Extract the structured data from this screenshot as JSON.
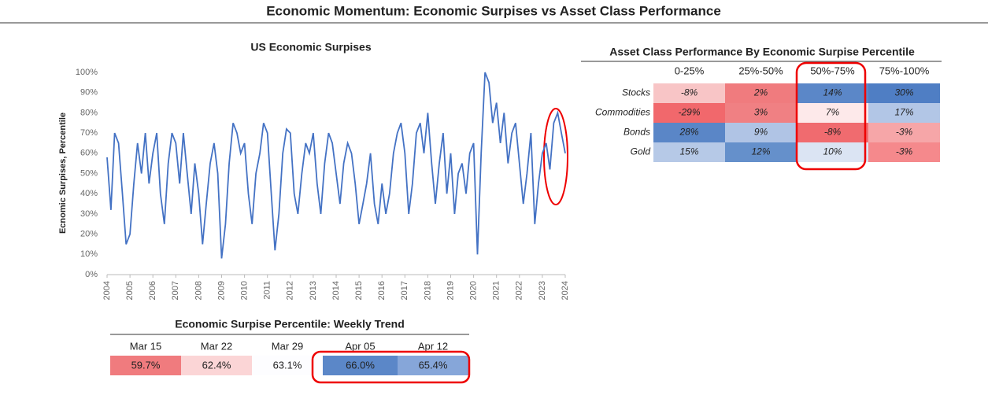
{
  "title": "Economic Momentum: Economic Surpises vs Asset Class Performance",
  "chart_data": {
    "type": "line",
    "title": "US Economic Surpises",
    "y_label": "Ecnomic Surpises, Percentile",
    "color": "#4472c4",
    "x": [
      2004,
      2004.17,
      2004.33,
      2004.5,
      2004.67,
      2004.83,
      2005,
      2005.17,
      2005.33,
      2005.5,
      2005.67,
      2005.83,
      2006,
      2006.17,
      2006.33,
      2006.5,
      2006.67,
      2006.83,
      2007,
      2007.17,
      2007.33,
      2007.5,
      2007.67,
      2007.83,
      2008,
      2008.17,
      2008.33,
      2008.5,
      2008.67,
      2008.83,
      2009,
      2009.17,
      2009.33,
      2009.5,
      2009.67,
      2009.83,
      2010,
      2010.17,
      2010.33,
      2010.5,
      2010.67,
      2010.83,
      2011,
      2011.17,
      2011.33,
      2011.5,
      2011.67,
      2011.83,
      2012,
      2012.17,
      2012.33,
      2012.5,
      2012.67,
      2012.83,
      2013,
      2013.17,
      2013.33,
      2013.5,
      2013.67,
      2013.83,
      2014,
      2014.17,
      2014.33,
      2014.5,
      2014.67,
      2014.83,
      2015,
      2015.17,
      2015.33,
      2015.5,
      2015.67,
      2015.83,
      2016,
      2016.17,
      2016.33,
      2016.5,
      2016.67,
      2016.83,
      2017,
      2017.17,
      2017.33,
      2017.5,
      2017.67,
      2017.83,
      2018,
      2018.17,
      2018.33,
      2018.5,
      2018.67,
      2018.83,
      2019,
      2019.17,
      2019.33,
      2019.5,
      2019.67,
      2019.83,
      2020,
      2020.17,
      2020.33,
      2020.5,
      2020.67,
      2020.83,
      2021,
      2021.17,
      2021.33,
      2021.5,
      2021.67,
      2021.83,
      2022,
      2022.17,
      2022.33,
      2022.5,
      2022.67,
      2022.83,
      2023,
      2023.17,
      2023.33,
      2023.5,
      2023.67,
      2023.83,
      2024
    ],
    "values": [
      58,
      32,
      70,
      65,
      40,
      15,
      20,
      45,
      65,
      50,
      70,
      45,
      60,
      70,
      40,
      25,
      55,
      70,
      65,
      45,
      70,
      50,
      30,
      55,
      40,
      15,
      35,
      55,
      65,
      50,
      8,
      25,
      55,
      75,
      70,
      60,
      65,
      40,
      25,
      50,
      60,
      75,
      70,
      40,
      12,
      30,
      60,
      72,
      70,
      40,
      30,
      50,
      65,
      60,
      70,
      45,
      30,
      55,
      70,
      65,
      50,
      35,
      55,
      65,
      60,
      45,
      25,
      35,
      45,
      60,
      35,
      25,
      45,
      30,
      40,
      60,
      70,
      75,
      60,
      30,
      45,
      70,
      75,
      60,
      80,
      55,
      35,
      55,
      70,
      40,
      60,
      30,
      50,
      55,
      40,
      60,
      65,
      10,
      60,
      100,
      95,
      75,
      85,
      65,
      80,
      55,
      70,
      75,
      55,
      35,
      50,
      70,
      25,
      45,
      60,
      65,
      52,
      75,
      80,
      70,
      60
    ],
    "xlim": [
      2004,
      2024
    ],
    "xticks": [
      2004,
      2005,
      2006,
      2007,
      2008,
      2009,
      2010,
      2011,
      2012,
      2013,
      2014,
      2015,
      2016,
      2017,
      2018,
      2019,
      2020,
      2021,
      2022,
      2023,
      2024
    ],
    "ylim": [
      0,
      100
    ],
    "yticks": [
      {
        "value": 0,
        "label": "0%"
      },
      {
        "value": 10,
        "label": "10%"
      },
      {
        "value": 20,
        "label": "20%"
      },
      {
        "value": 30,
        "label": "30%"
      },
      {
        "value": 40,
        "label": "40%"
      },
      {
        "value": 50,
        "label": "50%"
      },
      {
        "value": 60,
        "label": "60%"
      },
      {
        "value": 70,
        "label": "70%"
      },
      {
        "value": 80,
        "label": "80%"
      },
      {
        "value": 90,
        "label": "90%"
      },
      {
        "value": 100,
        "label": "100%"
      }
    ]
  },
  "performance_table": {
    "title": "Asset Class Performance By Economic Surpise Percentile",
    "columns": [
      "0-25%",
      "25%-50%",
      "50%-75%",
      "75%-100%"
    ],
    "rows": [
      {
        "label": "Stocks",
        "cells": [
          "-8%",
          "2%",
          "14%",
          "30%"
        ],
        "colors": [
          "#f8c5c6",
          "#f07b7e",
          "#5b87c8",
          "#4f7ec4"
        ]
      },
      {
        "label": "Commodities",
        "cells": [
          "-29%",
          "3%",
          "7%",
          "17%"
        ],
        "colors": [
          "#f1686c",
          "#f08083",
          "#fde9ea",
          "#b2c6e6"
        ]
      },
      {
        "label": "Bonds",
        "cells": [
          "28%",
          "9%",
          "-8%",
          "-3%"
        ],
        "colors": [
          "#5a86c7",
          "#b0c4e5",
          "#f06b6f",
          "#f6a6a8"
        ]
      },
      {
        "label": "Gold",
        "cells": [
          "15%",
          "12%",
          "10%",
          "-3%"
        ],
        "colors": [
          "#b6c9e7",
          "#6590cb",
          "#dbe4f3",
          "#f5898c"
        ]
      }
    ]
  },
  "weekly_trend": {
    "title": "Economic Surpise Percentile: Weekly Trend",
    "dates": [
      "Mar 15",
      "Mar 22",
      "Mar 29",
      "Apr 05",
      "Apr 12"
    ],
    "values": [
      "59.7%",
      "62.4%",
      "63.1%",
      "66.0%",
      "65.4%"
    ],
    "colors": [
      "#f07b7e",
      "#fbd5d6",
      "#fdfdff",
      "#5b87c8",
      "#86a6d9"
    ]
  }
}
